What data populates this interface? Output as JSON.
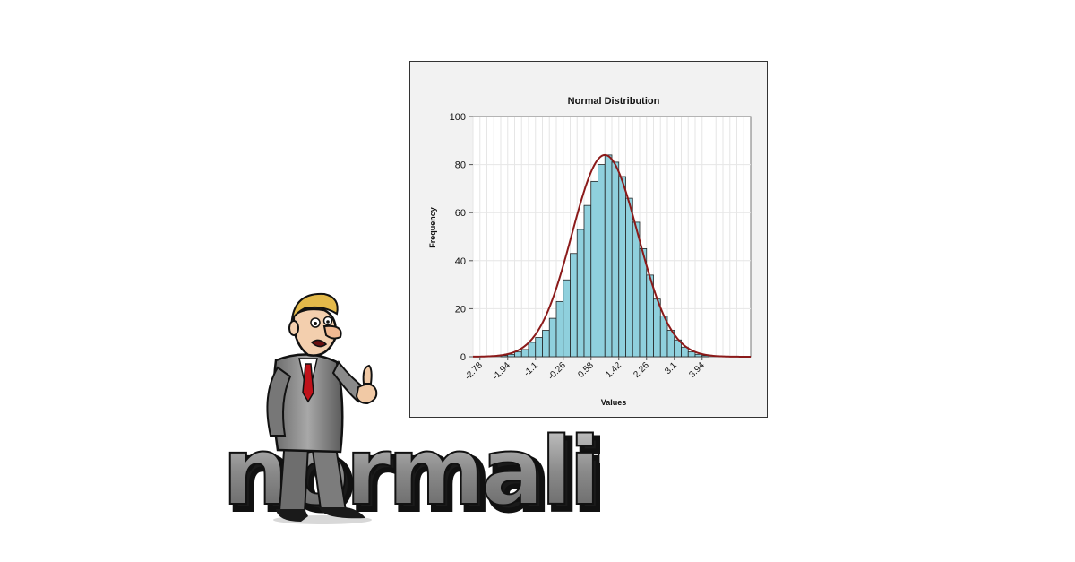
{
  "chart_data": {
    "type": "bar",
    "title": "Normal Distribution",
    "xlabel": "Values",
    "ylabel": "Frequency",
    "ylim": [
      0,
      100
    ],
    "yticks": [
      0,
      20,
      40,
      60,
      80,
      100
    ],
    "xlim": [
      -2.99,
      5.41
    ],
    "xtick_labels": [
      "-2.78",
      "-1.94",
      "-1.1",
      "-0.26",
      "0.58",
      "1.42",
      "2.26",
      "3.1",
      "3.94"
    ],
    "bin_width": 0.21,
    "bin_centers": [
      -2.885,
      -2.675,
      -2.465,
      -2.255,
      -2.045,
      -1.835,
      -1.625,
      -1.415,
      -1.205,
      -0.995,
      -0.785,
      -0.575,
      -0.365,
      -0.155,
      0.055,
      0.265,
      0.475,
      0.685,
      0.895,
      1.105,
      1.315,
      1.525,
      1.735,
      1.945,
      2.155,
      2.365,
      2.575,
      2.785,
      2.995,
      3.205,
      3.415,
      3.625,
      3.835,
      4.045,
      4.255,
      4.465,
      4.675,
      4.885,
      5.095,
      5.305
    ],
    "series": [
      {
        "values": [
          0,
          0,
          0,
          0,
          0.5,
          1,
          2,
          3,
          6,
          8,
          11,
          16,
          23,
          32,
          43,
          53,
          63,
          73,
          80,
          84,
          81,
          75,
          66,
          56,
          45,
          34,
          24,
          17,
          11,
          7,
          4,
          2,
          1,
          0.5,
          0,
          0,
          0,
          0,
          0,
          0
        ]
      },
      {
        "type": "line",
        "mean": 1.0,
        "sd": 1.0,
        "peak": 84
      }
    ],
    "colors": {
      "bar_fill": "#8fd0dd",
      "bar_edge": "#222222",
      "curve": "#8b1a1a",
      "panel_bg": "#f2f2f2",
      "plot_bg": "#ffffff",
      "grid": "#e6e6e6"
    },
    "grid": true,
    "legend": "none"
  },
  "illustration": {
    "word": "normality",
    "icon": "thumbs-up-businessman-icon"
  }
}
